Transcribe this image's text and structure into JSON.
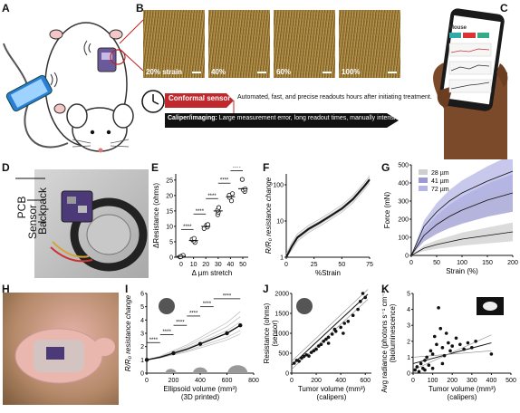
{
  "panels": {
    "A": "A",
    "B": "B",
    "C": "C",
    "D": "D",
    "E": "E",
    "F": "F",
    "G": "G",
    "H": "H",
    "I": "I",
    "J": "J",
    "K": "K"
  },
  "micrographs": [
    "20% strain",
    "40%",
    "60%",
    "100%"
  ],
  "arrows": {
    "conformal_label": "Conformal sensor",
    "conformal_text": "Automated, fast, and precise readouts hours after initiating treatment.",
    "caliper_label": "Caliper/imaging:",
    "caliper_text": "Large measurement error, long readout times, manually intensive"
  },
  "phone_ui": {
    "app_title": "Mouse",
    "buttons": [
      "",
      "",
      ""
    ]
  },
  "device_labels": [
    "PCB",
    "Sensor",
    "Backpack"
  ],
  "colors": {
    "red_arrow": "#c0282d",
    "black_arrow": "#111111",
    "band_28": "#cfcfcf",
    "band_41": "#9b9bd2",
    "band_72": "#b6b6e6"
  },
  "chart_data": [
    {
      "panel": "E",
      "type": "scatter",
      "ylabel": "ΔResistance (ohms)",
      "xlabel": "Δ µm stretch",
      "categories": [
        "0",
        "10",
        "20",
        "30",
        "40",
        "50"
      ],
      "yticks": [
        "0",
        "5",
        "10",
        "15",
        "20",
        "25"
      ],
      "ylim": [
        0,
        27
      ],
      "points": [
        [
          0,
          0.1
        ],
        [
          0,
          0.3
        ],
        [
          0,
          0.4
        ],
        [
          0,
          0.6
        ],
        [
          0,
          0.2
        ],
        [
          10,
          4.8
        ],
        [
          10,
          5.3
        ],
        [
          10,
          5.8
        ],
        [
          10,
          6.1
        ],
        [
          20,
          9.3
        ],
        [
          20,
          9.8
        ],
        [
          20,
          10.4
        ],
        [
          20,
          10.6
        ],
        [
          30,
          13.8
        ],
        [
          30,
          14.6
        ],
        [
          30,
          15.2
        ],
        [
          30,
          16.1
        ],
        [
          40,
          18.3
        ],
        [
          40,
          19.4
        ],
        [
          40,
          20.1
        ],
        [
          40,
          20.6
        ],
        [
          50,
          21.3
        ],
        [
          50,
          21.8
        ],
        [
          50,
          22.1
        ],
        [
          50,
          25.2
        ]
      ],
      "significance": "****"
    },
    {
      "panel": "F",
      "type": "line",
      "ylabel": "R/R₀ resistance change",
      "xlabel": "%Strain",
      "xticks": [
        "0",
        "25",
        "50",
        "75"
      ],
      "yticks": [
        "1",
        "10",
        "100"
      ],
      "ylim": [
        1,
        200
      ],
      "yscale": "log",
      "x": [
        0,
        5,
        10,
        20,
        30,
        40,
        50,
        60,
        70,
        75
      ],
      "values": [
        1,
        2,
        3.5,
        6,
        9,
        14,
        22,
        40,
        90,
        140
      ]
    },
    {
      "panel": "G",
      "type": "line",
      "ylabel": "Force (mN)",
      "xlabel": "Strain (%)",
      "xticks": [
        "0",
        "50",
        "100",
        "150",
        "200"
      ],
      "yticks": [
        "0",
        "100",
        "200",
        "300",
        "400",
        "500"
      ],
      "ylim": [
        0,
        500
      ],
      "x": [
        0,
        25,
        50,
        75,
        100,
        150,
        200
      ],
      "series": [
        {
          "name": "28 µm",
          "values": [
            0,
            40,
            60,
            75,
            90,
            110,
            130
          ]
        },
        {
          "name": "41 µm",
          "values": [
            0,
            110,
            170,
            215,
            250,
            305,
            345
          ]
        },
        {
          "name": "72 µm",
          "values": [
            0,
            160,
            240,
            300,
            345,
            410,
            465
          ]
        }
      ]
    },
    {
      "panel": "I",
      "type": "line",
      "ylabel": "R/R₀ resistance change",
      "xlabel": "Ellipsoid volume (mm³)",
      "xlabel2": "(3D printed)",
      "xticks": [
        "0",
        "200",
        "400",
        "600",
        "800"
      ],
      "yticks": [
        "0",
        "1",
        "2",
        "3",
        "4",
        "5",
        "6"
      ],
      "ylim": [
        0,
        6
      ],
      "x": [
        0,
        100,
        200,
        300,
        400,
        500,
        600,
        700
      ],
      "values": [
        1.0,
        1.2,
        1.5,
        1.8,
        2.2,
        2.6,
        3.0,
        3.6
      ],
      "significance": "****"
    },
    {
      "panel": "J",
      "type": "scatter",
      "ylabel": "Resistance (ohms)",
      "ylabel2": "(sensor)",
      "xlabel": "Tumor volume (mm³)",
      "xlabel2": "(calipers)",
      "xticks": [
        "0",
        "200",
        "400",
        "600"
      ],
      "yticks": [
        "0",
        "500",
        "1000",
        "1500",
        "2000"
      ],
      "ylim": [
        0,
        2000
      ],
      "points": [
        [
          20,
          250
        ],
        [
          40,
          320
        ],
        [
          60,
          300
        ],
        [
          80,
          380
        ],
        [
          100,
          420
        ],
        [
          120,
          460
        ],
        [
          140,
          430
        ],
        [
          160,
          520
        ],
        [
          180,
          560
        ],
        [
          200,
          600
        ],
        [
          220,
          680
        ],
        [
          240,
          720
        ],
        [
          260,
          800
        ],
        [
          280,
          850
        ],
        [
          300,
          900
        ],
        [
          330,
          980
        ],
        [
          360,
          1050
        ],
        [
          400,
          1150
        ],
        [
          430,
          1250
        ],
        [
          460,
          1300
        ],
        [
          500,
          1450
        ],
        [
          540,
          1600
        ],
        [
          560,
          1800
        ],
        [
          580,
          2000
        ],
        [
          600,
          1900
        ],
        [
          300,
          750
        ],
        [
          350,
          1100
        ],
        [
          420,
          1000
        ]
      ]
    },
    {
      "panel": "K",
      "type": "scatter",
      "ylabel": "Avg radiance (photons s⁻¹ cm⁻² sr⁻¹)",
      "ylabel2": "(bioluminescence)",
      "xlabel": "Tumor volume (mm³)",
      "xlabel2": "(calipers)",
      "xticks": [
        "0",
        "100",
        "200",
        "300",
        "400",
        "500"
      ],
      "yticks": [
        "0",
        "1",
        "2",
        "3",
        "4",
        "5"
      ],
      "ylim": [
        0,
        5
      ],
      "points": [
        [
          10,
          0.2
        ],
        [
          20,
          0.4
        ],
        [
          30,
          0.1
        ],
        [
          40,
          0.6
        ],
        [
          50,
          0.3
        ],
        [
          60,
          0.8
        ],
        [
          70,
          1.0
        ],
        [
          80,
          0.5
        ],
        [
          90,
          1.4
        ],
        [
          100,
          1.2
        ],
        [
          110,
          2.3
        ],
        [
          120,
          1.8
        ],
        [
          130,
          4.1
        ],
        [
          140,
          2.8
        ],
        [
          150,
          1.6
        ],
        [
          160,
          1.1
        ],
        [
          170,
          2.5
        ],
        [
          180,
          1.9
        ],
        [
          190,
          1.4
        ],
        [
          200,
          1.7
        ],
        [
          220,
          2.2
        ],
        [
          240,
          1.8
        ],
        [
          260,
          1.5
        ],
        [
          280,
          1.9
        ],
        [
          300,
          1.6
        ],
        [
          320,
          2.0
        ],
        [
          400,
          1.2
        ],
        [
          60,
          0.2
        ],
        [
          100,
          0.3
        ],
        [
          150,
          0.6
        ]
      ]
    }
  ]
}
